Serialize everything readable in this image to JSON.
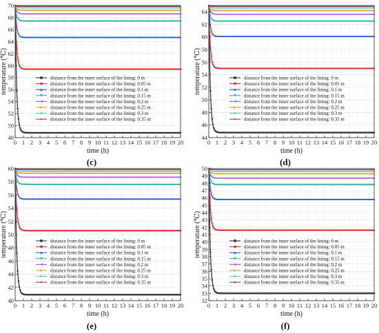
{
  "legend_labels": [
    "distance from the inner surface of the lining: 0 m",
    "distance from the inner surface of the lining: 0.05 m",
    "distance from the inner surface of the lining: 0.1 m",
    "distance from the inner surface of the lining: 0.15 m",
    "distance from the inner surface of the lining: 0.2 m",
    "distance from the inner surface of the lining: 0.25 m",
    "distance from the inner surface of the lining: 0.3 m",
    "distance from the inner surface of the lining: 0.35 m"
  ],
  "series_colors": [
    "#333333",
    "#e8262b",
    "#1f5fd0",
    "#2db3a3",
    "#a25cdb",
    "#d9a21a",
    "#59c8dd",
    "#9c3c3c"
  ],
  "chart_data": [
    {
      "panel": "(c)",
      "type": "line",
      "xlabel": "time (h)",
      "ylabel": "temperature (℃)",
      "xlim": [
        0,
        20
      ],
      "ylim": [
        48,
        70
      ],
      "xticks": [
        0,
        1,
        2,
        3,
        4,
        5,
        6,
        7,
        8,
        9,
        10,
        11,
        12,
        13,
        14,
        15,
        16,
        17,
        18,
        19,
        20
      ],
      "yticks": [
        48,
        50,
        52,
        54,
        56,
        58,
        60,
        62,
        64,
        66,
        68,
        70
      ],
      "legend": "middle-left",
      "grid": true,
      "series": [
        {
          "name": "distance from the inner surface of the lining: 0 m",
          "start": 70,
          "steady": 48.8
        },
        {
          "name": "distance from the inner surface of the lining: 0.05 m",
          "start": 70,
          "steady": 59.4
        },
        {
          "name": "distance from the inner surface of the lining: 0.1 m",
          "start": 70,
          "steady": 64.7
        },
        {
          "name": "distance from the inner surface of the lining: 0.15 m",
          "start": 70,
          "steady": 67.4
        },
        {
          "name": "distance from the inner surface of the lining: 0.2 m",
          "start": 70,
          "steady": 68.6
        },
        {
          "name": "distance from the inner surface of the lining: 0.25 m",
          "start": 70,
          "steady": 69.2
        },
        {
          "name": "distance from the inner surface of the lining: 0.3 m",
          "start": 70,
          "steady": 69.6
        },
        {
          "name": "distance from the inner surface of the lining: 0.35 m",
          "start": 70,
          "steady": 69.85
        }
      ]
    },
    {
      "panel": "(d)",
      "type": "line",
      "xlabel": "time (h)",
      "ylabel": "temperature (℃)",
      "xlim": [
        0,
        20
      ],
      "ylim": [
        44,
        65
      ],
      "xticks": [
        0,
        1,
        2,
        3,
        4,
        5,
        6,
        7,
        8,
        9,
        10,
        11,
        12,
        13,
        14,
        15,
        16,
        17,
        18,
        19,
        20
      ],
      "yticks": [
        44,
        46,
        48,
        50,
        52,
        54,
        56,
        58,
        60,
        62,
        64
      ],
      "legend": "middle-left",
      "grid": true,
      "series": [
        {
          "name": "distance from the inner surface of the lining: 0 m",
          "start": 65,
          "steady": 44.8
        },
        {
          "name": "distance from the inner surface of the lining: 0.05 m",
          "start": 65,
          "steady": 55.0
        },
        {
          "name": "distance from the inner surface of the lining: 0.1 m",
          "start": 65,
          "steady": 60.1
        },
        {
          "name": "distance from the inner surface of the lining: 0.15 m",
          "start": 65,
          "steady": 62.5
        },
        {
          "name": "distance from the inner surface of the lining: 0.2 m",
          "start": 65,
          "steady": 63.6
        },
        {
          "name": "distance from the inner surface of the lining: 0.25 m",
          "start": 65,
          "steady": 64.2
        },
        {
          "name": "distance from the inner surface of the lining: 0.3 m",
          "start": 65,
          "steady": 64.6
        },
        {
          "name": "distance from the inner surface of the lining: 0.35 m",
          "start": 65,
          "steady": 64.85
        }
      ]
    },
    {
      "panel": "(e)",
      "type": "line",
      "xlabel": "time (h)",
      "ylabel": "temperature (℃)",
      "xlim": [
        0,
        20
      ],
      "ylim": [
        40,
        60
      ],
      "xticks": [
        0,
        1,
        2,
        3,
        4,
        5,
        6,
        7,
        8,
        9,
        10,
        11,
        12,
        13,
        14,
        15,
        16,
        17,
        18,
        19,
        20
      ],
      "yticks": [
        40,
        42,
        44,
        46,
        48,
        50,
        52,
        54,
        56,
        58,
        60
      ],
      "legend": "middle-left",
      "grid": true,
      "series": [
        {
          "name": "distance from the inner surface of the lining: 0 m",
          "start": 60,
          "steady": 40.9
        },
        {
          "name": "distance from the inner surface of the lining: 0.05 m",
          "start": 60,
          "steady": 50.6
        },
        {
          "name": "distance from the inner surface of the lining: 0.1 m",
          "start": 60,
          "steady": 55.4
        },
        {
          "name": "distance from the inner surface of the lining: 0.15 m",
          "start": 60,
          "steady": 57.6
        },
        {
          "name": "distance from the inner surface of the lining: 0.2 m",
          "start": 60,
          "steady": 58.7
        },
        {
          "name": "distance from the inner surface of the lining: 0.25 m",
          "start": 60,
          "steady": 59.3
        },
        {
          "name": "distance from the inner surface of the lining: 0.3 m",
          "start": 60,
          "steady": 59.6
        },
        {
          "name": "distance from the inner surface of the lining: 0.35 m",
          "start": 60,
          "steady": 59.85
        }
      ]
    },
    {
      "panel": "(f)",
      "type": "line",
      "xlabel": "time (h)",
      "ylabel": "temperature (℃)",
      "xlim": [
        0,
        20
      ],
      "ylim": [
        32,
        50
      ],
      "xticks": [
        0,
        1,
        2,
        3,
        4,
        5,
        6,
        7,
        8,
        9,
        10,
        11,
        12,
        13,
        14,
        15,
        16,
        17,
        18,
        19,
        20
      ],
      "yticks": [
        32,
        33,
        34,
        35,
        36,
        37,
        38,
        39,
        40,
        41,
        42,
        43,
        44,
        45,
        46,
        47,
        48,
        49,
        50
      ],
      "legend": "middle-left",
      "grid": true,
      "series": [
        {
          "name": "distance from the inner surface of the lining: 0 m",
          "start": 50,
          "steady": 33.0
        },
        {
          "name": "distance from the inner surface of the lining: 0.05 m",
          "start": 50,
          "steady": 41.6
        },
        {
          "name": "distance from the inner surface of the lining: 0.1 m",
          "start": 50,
          "steady": 45.8
        },
        {
          "name": "distance from the inner surface of the lining: 0.15 m",
          "start": 50,
          "steady": 47.8
        },
        {
          "name": "distance from the inner surface of the lining: 0.2 m",
          "start": 50,
          "steady": 48.7
        },
        {
          "name": "distance from the inner surface of the lining: 0.25 m",
          "start": 50,
          "steady": 49.3
        },
        {
          "name": "distance from the inner surface of the lining: 0.3 m",
          "start": 50,
          "steady": 49.6
        },
        {
          "name": "distance from the inner surface of the lining: 0.35 m",
          "start": 50,
          "steady": 49.85
        }
      ]
    }
  ]
}
